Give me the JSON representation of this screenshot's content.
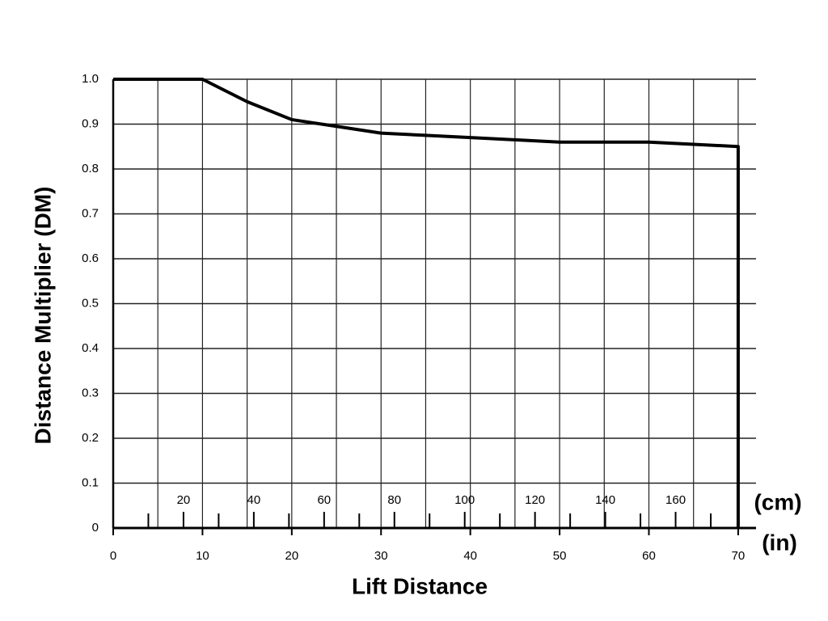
{
  "chart_data": {
    "type": "line",
    "xlabel": "Lift Distance",
    "ylabel": "Distance Multiplier (DM)",
    "x_unit": "(in)",
    "x2_unit": "(cm)",
    "x": [
      0,
      10,
      15,
      20,
      25,
      30,
      35,
      40,
      45,
      50,
      55,
      60,
      65,
      70,
      70
    ],
    "series": [
      {
        "color": "#000000",
        "values": [
          1.0,
          1.0,
          0.95,
          0.91,
          0.895,
          0.88,
          0.875,
          0.87,
          0.865,
          0.86,
          0.86,
          0.86,
          0.855,
          0.85,
          0
        ]
      }
    ],
    "xlim": [
      0,
      72
    ],
    "xticks": [
      0,
      10,
      20,
      30,
      40,
      50,
      60,
      70
    ],
    "x2lim": [
      0,
      182.88
    ],
    "x2ticks": [
      20,
      40,
      60,
      80,
      100,
      120,
      140,
      160
    ],
    "x2minor": [
      10,
      30,
      50,
      70,
      90,
      110,
      130,
      150,
      170
    ],
    "ylim": [
      0,
      1
    ],
    "yticks": [
      0,
      0.1,
      0.2,
      0.3,
      0.4,
      0.5,
      0.6,
      0.7,
      0.8,
      0.9,
      {
        "value": 1,
        "label": "1.0"
      }
    ],
    "xgrid_step": 5,
    "grid": true
  }
}
